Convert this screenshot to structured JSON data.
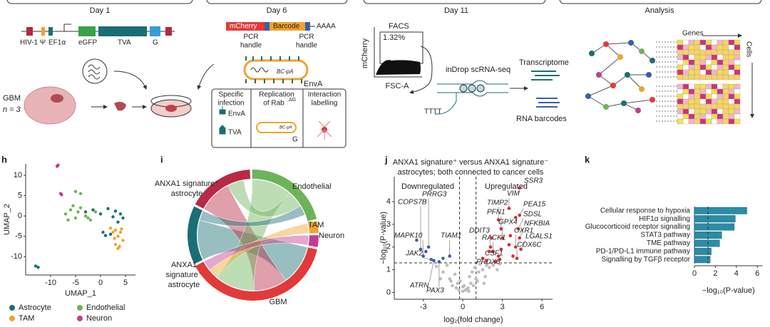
{
  "letters": [
    "h",
    "i",
    "j",
    "k"
  ],
  "schematic": {
    "day1": {
      "title": "Day 1",
      "vector": [
        "HIV-1 Ψ",
        "EF1α",
        "eGFP",
        "TVA",
        "G"
      ],
      "sample": "GBM",
      "n": "n = 3"
    },
    "day6": {
      "title": "Day 6",
      "construct": [
        "mCherry",
        "Barcode",
        "AAAA"
      ],
      "handles": [
        "PCR",
        "handle",
        "PCR",
        "handle"
      ],
      "bc_pa": "BC-pA",
      "envelope": "EnvA",
      "boxes": [
        {
          "lines": [
            "Specific",
            "infection"
          ],
          "items": [
            "EnvA",
            "TVA"
          ]
        },
        {
          "lines": [
            "Replication",
            "of Rab"
          ],
          "sup": "ΔG",
          "item": "G"
        },
        {
          "lines": [
            "Interaction",
            "labelling"
          ]
        }
      ]
    },
    "day11": {
      "title": "Day 11",
      "facs": "FACS",
      "gate": "1.32%",
      "y_axis": "mCherry",
      "x_axis": "FSC-A",
      "method": "inDrop scRNA-seq",
      "transcriptome": "Transcriptome",
      "polyT": "TTTT",
      "barcodes": "RNA barcodes"
    },
    "analysis": {
      "title": "Analysis",
      "genes": "Genes",
      "cells": "Cells"
    }
  },
  "chart_data": [
    {
      "type": "scatter",
      "xlabel": "UMAP_1",
      "ylabel": "UMAP_2",
      "xlim": [
        -15,
        7
      ],
      "ylim": [
        -14.5,
        12.8
      ],
      "xticks": [
        -10,
        -5,
        0,
        5
      ],
      "yticks": [
        -10,
        -5,
        0,
        5,
        10
      ],
      "series": [
        {
          "name": "Astrocyte",
          "color": "#1b6e74",
          "x": [
            -3,
            -1.5,
            0,
            1.5,
            3,
            4,
            4.5,
            2.5,
            0.5,
            1,
            2,
            3.5,
            -13,
            -12.5
          ],
          "y": [
            1,
            1.5,
            0.5,
            1.8,
            1.2,
            0.5,
            -0.5,
            -0.2,
            -4,
            -4.8,
            -4.5,
            -1.5,
            -12.3,
            -12.6
          ]
        },
        {
          "name": "Endothelial",
          "color": "#6db35a",
          "x": [
            -7,
            -6,
            -5,
            -4.5,
            -4,
            -3,
            -2,
            -6.5,
            -5.5,
            -1,
            -5,
            -4,
            -2.5
          ],
          "y": [
            0.5,
            1.5,
            -0.5,
            1,
            2,
            0,
            -1,
            -1,
            2.5,
            1,
            6,
            5.5,
            -0.5
          ]
        },
        {
          "name": "TAM",
          "color": "#f0a32c",
          "x": [
            2,
            2.5,
            3,
            3.5,
            4,
            4.5,
            3,
            2.8,
            3.8,
            4.2,
            3.5
          ],
          "y": [
            -3,
            -4,
            -3.5,
            -5,
            -4,
            -6,
            -7,
            -5.5,
            -7.5,
            -3.2,
            -8
          ]
        },
        {
          "name": "Neuron",
          "color": "#c23d8f",
          "x": [
            -8.5,
            -8.7,
            -8,
            -7.8
          ],
          "y": [
            12.5,
            12.2,
            5.5,
            5.2
          ]
        }
      ]
    },
    {
      "type": "chord",
      "categories": [
        [
          "ANXA1 signature⁺",
          "astrocyte"
        ],
        [
          "Endothelial"
        ],
        [
          "TAM"
        ],
        [
          "Neuron"
        ],
        [
          "GBM"
        ],
        [
          "ANXA1",
          "signature⁻",
          "astrocyte"
        ]
      ],
      "colors": [
        "#b82a45",
        "#6db35a",
        "#f0a32c",
        "#c23d8f",
        "#e23a3a",
        "#1b6e74"
      ],
      "values": [
        17,
        22,
        3,
        3,
        40,
        15
      ],
      "links": [
        {
          "source": 5,
          "target": 4,
          "value": 12
        },
        {
          "source": 0,
          "target": 4,
          "value": 10
        },
        {
          "source": 1,
          "target": 4,
          "value": 12
        },
        {
          "source": 1,
          "target": 0,
          "value": 5
        },
        {
          "source": 2,
          "target": 4,
          "value": 3
        },
        {
          "source": 3,
          "target": 4,
          "value": 3
        },
        {
          "source": 5,
          "target": 1,
          "value": 3
        }
      ]
    },
    {
      "type": "volcano",
      "title": [
        "ANXA1 signature⁺ versus ANXA1 signature⁻",
        "astrocytes; both connected to cancer cells"
      ],
      "xlabel": "log₂(fold change)",
      "ylabel": "−log₁₀(P-value)",
      "regions": [
        "Downregulated",
        "Upregulated"
      ],
      "xlim": [
        -5.2,
        6.8
      ],
      "ylim": [
        -0.3,
        5.1
      ],
      "xticks": [
        -3,
        0,
        3,
        6
      ],
      "yticks": [
        0,
        1,
        2,
        3,
        4
      ],
      "fc_threshold": [
        -0.25,
        1
      ],
      "p_threshold": 1.3,
      "groups": [
        {
          "color": "#bdbdbd",
          "x": [
            -1.5,
            -1,
            -0.8,
            -0.5,
            -0.3,
            0,
            0.2,
            0.4,
            0.6,
            0.8,
            1,
            1.2,
            1.5,
            1.8,
            2,
            -1.2,
            -0.6,
            0.1,
            0.5,
            0.9,
            1.3,
            -2,
            -0.9,
            0.3,
            1.7,
            2.3,
            -0.4,
            0.7,
            1.1,
            1.6,
            2.6,
            -1.7,
            0,
            0.45,
            -0.2,
            2.8
          ],
          "y": [
            0.9,
            0.6,
            0.3,
            0.2,
            0.1,
            0.05,
            0.1,
            0.2,
            0.4,
            0.3,
            0.6,
            0.9,
            1,
            1.2,
            1.1,
            1.2,
            0.8,
            0.3,
            0.7,
            1.1,
            1.25,
            1.15,
            0.5,
            0.15,
            0.7,
            1.2,
            0.4,
            0.9,
            0.5,
            0.4,
            1.0,
            0.6,
            0.25,
            0.05,
            0.5,
            1.25
          ]
        },
        {
          "color": "#d62839",
          "labels": [
            "SSR3",
            "VIM",
            "PEA15",
            "TIMP2",
            "PFN1",
            "SDSL",
            "GPX4",
            "NFKBIA",
            "DDIT3",
            "OXR1",
            "RACK1",
            "LGALS1",
            "COX6C",
            "CSF1",
            "PRDX5",
            null,
            null,
            null,
            null,
            null,
            null,
            null,
            null,
            null,
            null
          ],
          "x": [
            4.3,
            3.5,
            4.3,
            2.7,
            2.9,
            4.2,
            3.0,
            4.3,
            2.1,
            4.0,
            2.3,
            4.4,
            4.1,
            2.8,
            2.5,
            1.5,
            2,
            2.7,
            3.5,
            3.8,
            2.2,
            1.8,
            3.6,
            4,
            2.9
          ],
          "y": [
            4.6,
            3.7,
            3.4,
            3.2,
            2.8,
            2.8,
            2.4,
            2.4,
            2.0,
            2.0,
            1.8,
            1.9,
            1.5,
            1.45,
            1.35,
            1.5,
            1.8,
            1.6,
            2.1,
            1.6,
            2.4,
            1.4,
            2.5,
            3.3,
            1.9
          ]
        },
        {
          "color": "#3a5fa8",
          "labels": [
            "PRRG3",
            "COPS7B",
            "MAPK10",
            "TIAM1",
            "JAK2",
            "ATRN",
            "PAX3",
            null,
            null,
            null
          ],
          "x": [
            -2.6,
            -3.2,
            -3.0,
            -1.0,
            -2.4,
            -2.2,
            -1.8,
            -2.8,
            -1.5,
            -3.5
          ],
          "y": [
            2.0,
            1.9,
            1.6,
            1.6,
            1.45,
            1.4,
            1.35,
            1.8,
            1.5,
            2.3
          ]
        }
      ]
    },
    {
      "type": "bar",
      "orientation": "horizontal",
      "categories": [
        "Cellular response to hypoxia",
        "HIF1α signalling",
        "Glucocorticoid receptor signalling",
        "STAT3 pathway",
        "TME pathway",
        "PD-1/PD-L1 immune pathway",
        "Signalling by TGFβ receptor"
      ],
      "values": [
        5.0,
        3.9,
        3.8,
        2.6,
        2.4,
        1.6,
        1.5
      ],
      "color": "#2b8ca6",
      "xlim": [
        0,
        6.5
      ],
      "xticks": [
        0,
        2,
        4,
        6
      ],
      "xlabel": "−log₁₀(P-value)",
      "threshold": 1.3
    }
  ]
}
